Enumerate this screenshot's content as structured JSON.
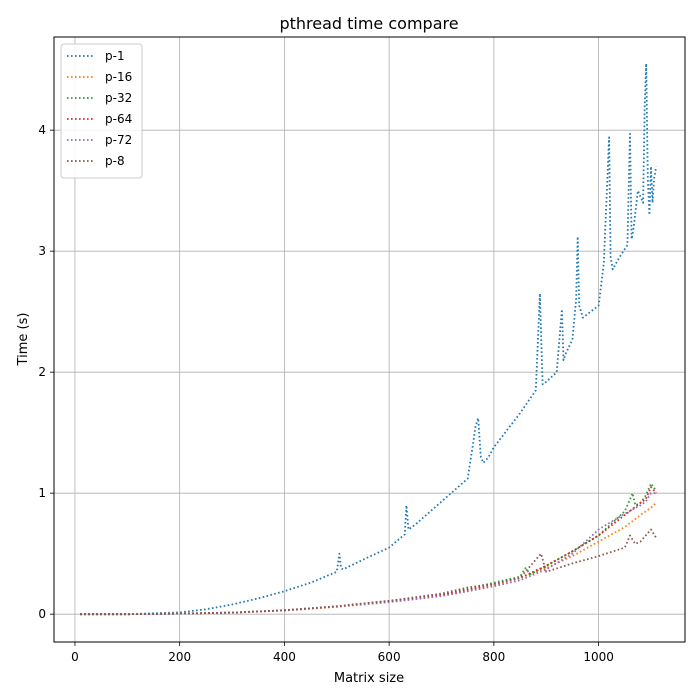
{
  "chart_data": {
    "type": "line",
    "title": "pthread time compare",
    "xlabel": "Matrix size",
    "ylabel": "Time (s)",
    "xlim": [
      -40,
      1165
    ],
    "ylim": [
      -0.23,
      4.77
    ],
    "xticks": [
      0,
      200,
      400,
      600,
      800,
      1000
    ],
    "yticks": [
      0,
      1,
      2,
      3,
      4
    ],
    "grid": true,
    "legend_position": "top-left",
    "line_style": "dotted",
    "series": [
      {
        "name": "p-1",
        "color": "#1f77b4",
        "x": [
          10,
          100,
          200,
          250,
          300,
          350,
          400,
          450,
          500,
          505,
          508,
          512,
          550,
          600,
          630,
          633,
          637,
          650,
          700,
          750,
          760,
          765,
          770,
          775,
          780,
          790,
          800,
          850,
          880,
          888,
          893,
          900,
          920,
          930,
          933,
          937,
          950,
          957,
          960,
          963,
          970,
          1000,
          1010,
          1020,
          1023,
          1027,
          1040,
          1055,
          1060,
          1063,
          1067,
          1075,
          1085,
          1088,
          1091,
          1094,
          1097,
          1100,
          1103,
          1106,
          1110
        ],
        "y": [
          0.0,
          0.0,
          0.015,
          0.04,
          0.08,
          0.13,
          0.19,
          0.26,
          0.35,
          0.5,
          0.38,
          0.37,
          0.45,
          0.55,
          0.66,
          0.9,
          0.7,
          0.74,
          0.93,
          1.12,
          1.4,
          1.55,
          1.62,
          1.3,
          1.25,
          1.3,
          1.38,
          1.66,
          1.85,
          2.65,
          1.9,
          1.92,
          2.0,
          2.52,
          2.1,
          2.15,
          2.27,
          2.6,
          3.12,
          2.55,
          2.45,
          2.55,
          2.9,
          3.94,
          2.95,
          2.85,
          2.95,
          3.05,
          3.97,
          3.1,
          3.2,
          3.5,
          3.4,
          4.2,
          4.55,
          3.6,
          3.3,
          3.7,
          3.4,
          3.6,
          3.7
        ]
      },
      {
        "name": "p-16",
        "color": "#ff7f0e",
        "x": [
          10,
          100,
          200,
          300,
          400,
          500,
          600,
          700,
          750,
          800,
          850,
          900,
          950,
          1000,
          1050,
          1080,
          1100,
          1110
        ],
        "y": [
          0.0,
          0.0,
          0.005,
          0.012,
          0.03,
          0.06,
          0.1,
          0.15,
          0.19,
          0.24,
          0.3,
          0.38,
          0.48,
          0.6,
          0.72,
          0.82,
          0.88,
          0.92
        ]
      },
      {
        "name": "p-32",
        "color": "#2ca02c",
        "x": [
          10,
          100,
          200,
          300,
          400,
          500,
          600,
          700,
          750,
          800,
          850,
          860,
          870,
          900,
          950,
          1000,
          1050,
          1065,
          1070,
          1080,
          1090,
          1100,
          1110
        ],
        "y": [
          0.0,
          0.0,
          0.005,
          0.013,
          0.032,
          0.065,
          0.11,
          0.16,
          0.21,
          0.26,
          0.31,
          0.38,
          0.33,
          0.4,
          0.52,
          0.65,
          0.85,
          1.0,
          0.9,
          0.92,
          0.98,
          1.08,
          1.02
        ]
      },
      {
        "name": "p-64",
        "color": "#d62728",
        "x": [
          10,
          100,
          200,
          300,
          400,
          500,
          600,
          700,
          750,
          800,
          850,
          900,
          950,
          1000,
          1050,
          1080,
          1090,
          1100,
          1110
        ],
        "y": [
          0.0,
          0.0,
          0.005,
          0.013,
          0.032,
          0.065,
          0.11,
          0.16,
          0.2,
          0.25,
          0.3,
          0.4,
          0.52,
          0.65,
          0.82,
          0.92,
          0.95,
          1.05,
          1.0
        ]
      },
      {
        "name": "p-72",
        "color": "#9467bd",
        "x": [
          10,
          100,
          200,
          300,
          400,
          500,
          600,
          700,
          750,
          800,
          850,
          900,
          950,
          1000,
          1050,
          1080,
          1090,
          1100,
          1110
        ],
        "y": [
          0.0,
          0.0,
          0.005,
          0.013,
          0.031,
          0.063,
          0.1,
          0.15,
          0.19,
          0.23,
          0.28,
          0.37,
          0.5,
          0.7,
          0.83,
          0.9,
          0.93,
          1.0,
          1.0
        ]
      },
      {
        "name": "p-8",
        "color": "#8c564b",
        "x": [
          10,
          100,
          200,
          300,
          400,
          500,
          600,
          700,
          750,
          800,
          850,
          890,
          900,
          950,
          1000,
          1050,
          1060,
          1070,
          1080,
          1090,
          1100,
          1110
        ],
        "y": [
          0.0,
          0.0,
          0.005,
          0.013,
          0.032,
          0.065,
          0.11,
          0.17,
          0.22,
          0.25,
          0.3,
          0.5,
          0.35,
          0.42,
          0.48,
          0.55,
          0.65,
          0.58,
          0.6,
          0.65,
          0.7,
          0.63
        ]
      }
    ]
  }
}
